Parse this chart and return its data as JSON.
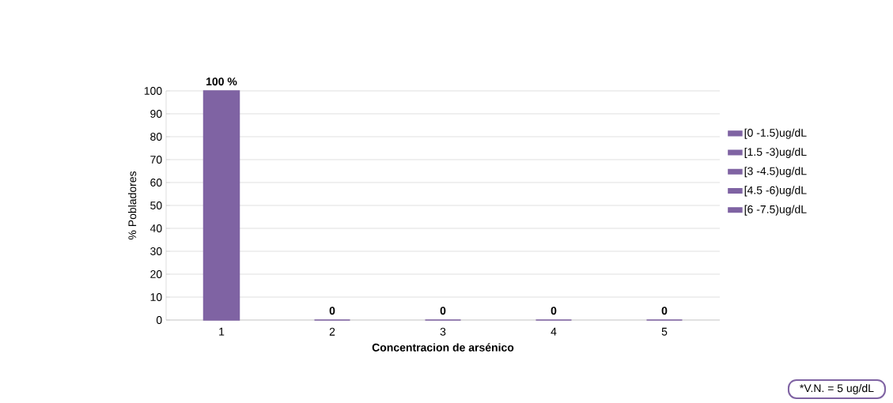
{
  "chart_data": {
    "type": "bar",
    "xlabel": "Concentracion de arsénico",
    "ylabel": "% Pobladores",
    "categories": [
      "1",
      "2",
      "3",
      "4",
      "5"
    ],
    "series": [
      {
        "name": "[0 -1.5)ug/dL",
        "color": "#7f63a3",
        "values": [
          100,
          null,
          null,
          null,
          null
        ],
        "value_labels": [
          "100 %",
          null,
          null,
          null,
          null
        ]
      },
      {
        "name": "[1.5 -3)ug/dL",
        "color": "#7f63a3",
        "values": [
          null,
          0,
          null,
          null,
          null
        ],
        "value_labels": [
          null,
          "0",
          null,
          null,
          null
        ]
      },
      {
        "name": "[3 -4.5)ug/dL",
        "color": "#7f63a3",
        "values": [
          null,
          null,
          0,
          null,
          null
        ],
        "value_labels": [
          null,
          null,
          "0",
          null,
          null
        ]
      },
      {
        "name": "[4.5 -6)ug/dL",
        "color": "#7f63a3",
        "values": [
          null,
          null,
          null,
          0,
          null
        ],
        "value_labels": [
          null,
          null,
          null,
          "0",
          null
        ]
      },
      {
        "name": "[6 -7.5)ug/dL",
        "color": "#7f63a3",
        "values": [
          null,
          null,
          null,
          null,
          0
        ],
        "value_labels": [
          null,
          null,
          null,
          null,
          "0"
        ]
      }
    ],
    "ylim": [
      0,
      100
    ],
    "yticks": [
      0,
      10,
      20,
      30,
      40,
      50,
      60,
      70,
      80,
      90,
      100
    ],
    "grid": "y",
    "legend": "right",
    "annotations": [
      "*V.N. = 5 ug/dL"
    ]
  }
}
